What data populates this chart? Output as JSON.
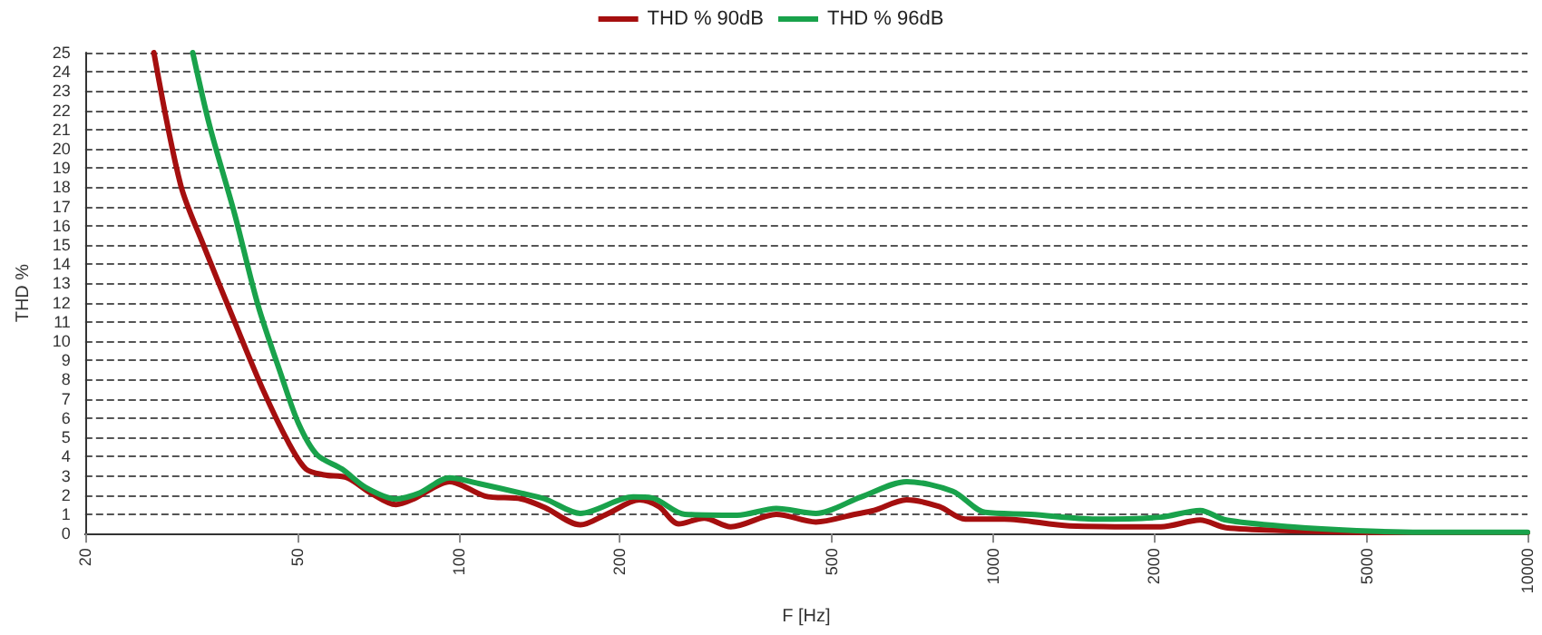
{
  "chart_data": {
    "type": "line",
    "xlabel": "F [Hz]",
    "ylabel": "THD %",
    "series": [
      {
        "name": "THD % 90dB",
        "color": "#a50f0f",
        "x": [
          26.9,
          30.2,
          33.3,
          38.1,
          43,
          48,
          51.8,
          56,
          61.9,
          68.5,
          76.3,
          82.4,
          96.2,
          112,
          131,
          145,
          169,
          189,
          218,
          237,
          258,
          288,
          323,
          393,
          466,
          551,
          599,
          689,
          793,
          887,
          1050,
          1390,
          2060,
          2440,
          2730,
          3610,
          4790,
          6340,
          10000
        ],
        "values": [
          25,
          18.1,
          15,
          11,
          7.5,
          4.75,
          3.35,
          3.05,
          2.9,
          2.1,
          1.5,
          1.8,
          2.7,
          1.95,
          1.8,
          1.35,
          0.45,
          1,
          1.75,
          1.4,
          0.5,
          0.8,
          0.35,
          1,
          0.6,
          1,
          1.2,
          1.75,
          1.4,
          0.75,
          0.75,
          0.4,
          0.35,
          0.7,
          0.3,
          0.15,
          0.07,
          0.05,
          0.05
        ]
      },
      {
        "name": "THD % 96dB",
        "color": "#19a24b",
        "x": [
          31.8,
          34.2,
          38.1,
          42.1,
          46.6,
          50.2,
          54.3,
          60.5,
          67,
          76.3,
          84.4,
          96.2,
          109,
          131,
          145,
          169,
          212,
          230,
          265,
          332,
          393,
          466,
          566,
          689,
          840,
          966,
          1175,
          1556,
          2060,
          2440,
          2730,
          3610,
          4790,
          6340,
          10000
        ],
        "values": [
          25,
          21.2,
          16.6,
          11.9,
          8.2,
          5.7,
          4.1,
          3.35,
          2.4,
          1.8,
          2.1,
          2.9,
          2.6,
          2.1,
          1.8,
          1.05,
          1.9,
          1.85,
          1,
          0.95,
          1.3,
          1.05,
          1.9,
          2.7,
          2.2,
          1.1,
          1,
          0.75,
          0.85,
          1.2,
          0.7,
          0.35,
          0.15,
          0.07,
          0.07
        ]
      }
    ],
    "log": "x",
    "xlim": [
      20,
      10000
    ],
    "xticks": [
      20,
      50,
      100,
      200,
      500,
      1000,
      2000,
      5000,
      10000
    ],
    "ylim": [
      0,
      25
    ],
    "yticks": [
      0,
      1,
      2,
      3,
      4,
      5,
      6,
      7,
      8,
      9,
      10,
      11,
      12,
      13,
      14,
      15,
      16,
      17,
      18,
      19,
      20,
      21,
      22,
      23,
      24,
      25
    ],
    "grid": "y",
    "legend": "top",
    "marker": "none",
    "line_style": "solid"
  }
}
